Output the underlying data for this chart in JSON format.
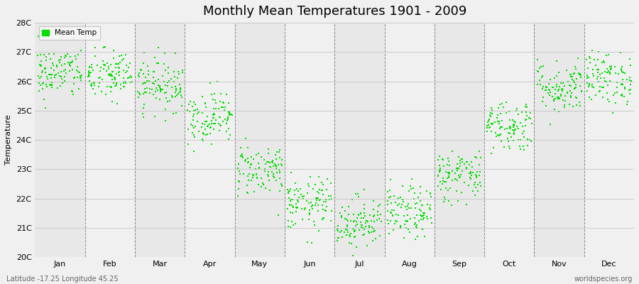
{
  "title": "Monthly Mean Temperatures 1901 - 2009",
  "ylabel": "Temperature",
  "xlabel_months": [
    "Jan",
    "Feb",
    "Mar",
    "Apr",
    "May",
    "Jun",
    "Jul",
    "Aug",
    "Sep",
    "Oct",
    "Nov",
    "Dec"
  ],
  "subtitle": "Latitude -17.25 Longitude 45.25",
  "watermark": "worldspecies.org",
  "ylim": [
    20,
    28
  ],
  "yticks": [
    20,
    21,
    22,
    23,
    24,
    25,
    26,
    27,
    28
  ],
  "ytick_labels": [
    "20C",
    "21C",
    "22C",
    "23C",
    "24C",
    "25C",
    "26C",
    "27C",
    "28C"
  ],
  "dot_color": "#00dd00",
  "bg_color": "#f0f0f0",
  "years": 109,
  "monthly_means": [
    26.3,
    26.2,
    25.9,
    24.8,
    23.0,
    21.8,
    21.2,
    21.5,
    22.8,
    24.5,
    25.8,
    26.1
  ],
  "monthly_stds": [
    0.45,
    0.45,
    0.45,
    0.45,
    0.45,
    0.45,
    0.45,
    0.45,
    0.45,
    0.45,
    0.45,
    0.45
  ],
  "seed": 42,
  "band_colors": [
    "#e8e8e8",
    "#f0f0f0"
  ]
}
